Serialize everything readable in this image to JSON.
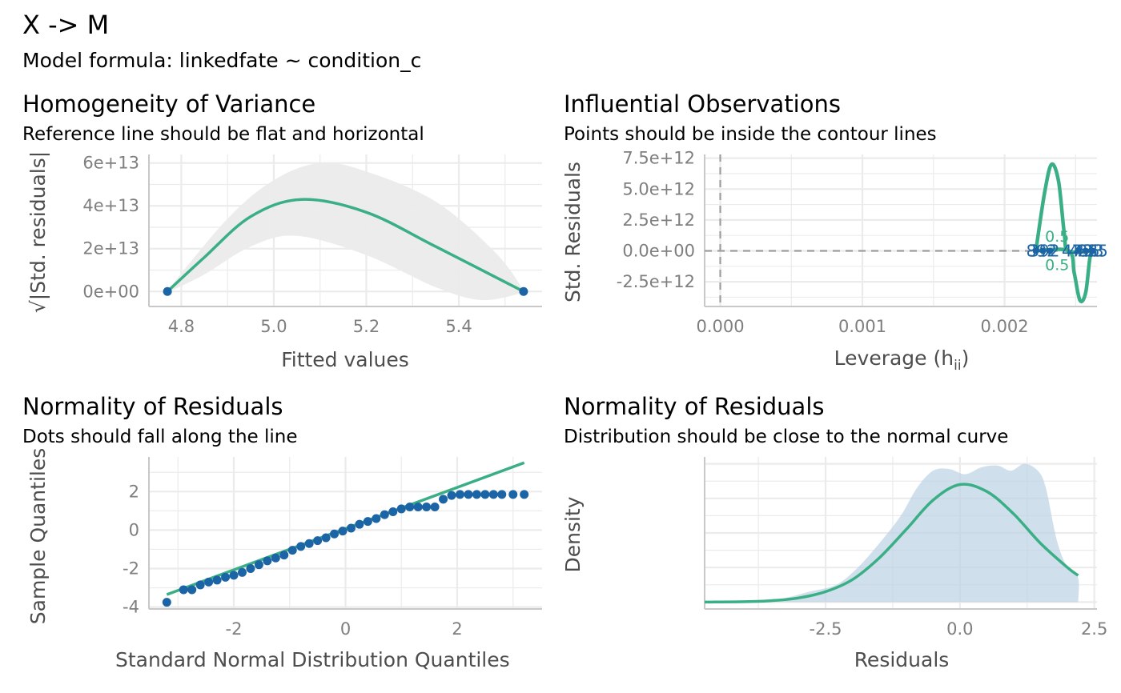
{
  "figure": {
    "title": "X -> M",
    "subtitle": "Model formula: linkedfate ~ condition_c"
  },
  "colors": {
    "fit_line": "#3aaf85",
    "points": "#1b64a5",
    "ribbon": "#ebebeb",
    "density_fill": "#bcd1e4",
    "grid": "#ebebeb",
    "reference": "#9e9e9e"
  },
  "chart_data": [
    {
      "id": "homogeneity",
      "type": "scatter",
      "title": "Homogeneity of Variance",
      "subtitle": "Reference line should be flat and horizontal",
      "xlabel": "Fitted values",
      "ylabel": "√|Std. residuals|",
      "xlim": [
        4.73,
        5.58
      ],
      "ylim": [
        -7000000000000.0,
        64000000000000.0
      ],
      "xticks": [
        4.8,
        5.0,
        5.2,
        5.4
      ],
      "xtick_labels": [
        "4.8",
        "5.0",
        "5.2",
        "5.4"
      ],
      "yticks": [
        0,
        20000000000000.0,
        40000000000000.0,
        60000000000000.0
      ],
      "ytick_labels": [
        "0e+00",
        "2e+13",
        "4e+13",
        "6e+13"
      ],
      "points": [
        [
          4.77,
          0
        ],
        [
          5.54,
          0
        ]
      ],
      "smooth": [
        [
          4.77,
          0
        ],
        [
          4.85,
          16000000000000.0
        ],
        [
          4.95,
          35000000000000.0
        ],
        [
          5.06,
          43000000000000.0
        ],
        [
          5.2,
          37000000000000.0
        ],
        [
          5.35,
          21000000000000.0
        ],
        [
          5.54,
          0
        ]
      ],
      "ribbon_upper": [
        [
          4.77,
          500000000000.0
        ],
        [
          4.9,
          34000000000000.0
        ],
        [
          5.0,
          52000000000000.0
        ],
        [
          5.1,
          60000000000000.0
        ],
        [
          5.2,
          56000000000000.0
        ],
        [
          5.35,
          42000000000000.0
        ],
        [
          5.48,
          18000000000000.0
        ],
        [
          5.54,
          500000000000.0
        ]
      ],
      "ribbon_lower": [
        [
          4.77,
          -500000000000.0
        ],
        [
          4.85,
          8000000000000.0
        ],
        [
          4.95,
          21000000000000.0
        ],
        [
          5.05,
          26000000000000.0
        ],
        [
          5.2,
          17000000000000.0
        ],
        [
          5.35,
          2000000000000.0
        ],
        [
          5.45,
          -4000000000000.0
        ],
        [
          5.54,
          -500000000000.0
        ]
      ]
    },
    {
      "id": "influential",
      "type": "scatter",
      "title": "Influential Observations",
      "subtitle": "Points should be inside the contour lines",
      "xlabel": "Leverage (h",
      "xlabel_sub": "ii",
      "xlabel_end": ")",
      "ylabel": "Std. Residuals",
      "xlim": [
        -0.00011,
        0.00265
      ],
      "ylim": [
        -4500000000000.0,
        7800000000000.0
      ],
      "xticks": [
        0,
        0.001,
        0.002
      ],
      "xtick_labels": [
        "0.000",
        "0.001",
        "0.002"
      ],
      "yticks": [
        -2500000000000.0,
        0,
        2500000000000.0,
        5000000000000.0,
        7500000000000.0
      ],
      "ytick_labels": [
        "-2.5e+12",
        "0.0e+00",
        "2.5e+12",
        "5.0e+12",
        "7.5e+12"
      ],
      "points": [
        [
          0.00222,
          0
        ],
        [
          0.00227,
          0
        ],
        [
          0.00232,
          0
        ],
        [
          0.00252,
          0
        ],
        [
          0.00257,
          0
        ],
        [
          0.00262,
          0
        ]
      ],
      "point_labels": [
        {
          "x": 0.00226,
          "y": 0,
          "text": "892",
          "anchor": "middle"
        },
        {
          "x": 0.00228,
          "y": 0,
          "text": "392",
          "anchor": "middle"
        },
        {
          "x": 0.00251,
          "y": 0,
          "text": "473",
          "anchor": "middle"
        },
        {
          "x": 0.00256,
          "y": 0,
          "text": "456",
          "anchor": "middle"
        },
        {
          "x": 0.00259,
          "y": 0,
          "text": "423",
          "anchor": "middle"
        },
        {
          "x": 0.00262,
          "y": 0,
          "text": "235",
          "anchor": "middle"
        }
      ],
      "contour_upper": [
        [
          0.00222,
          0
        ],
        [
          0.00228,
          4600000000000.0
        ],
        [
          0.00233,
          7000000000000.0
        ],
        [
          0.00238,
          5600000000000.0
        ],
        [
          0.00242,
          1400000000000.0
        ],
        [
          0.00245,
          0
        ],
        [
          0.00262,
          0
        ]
      ],
      "contour_lower": [
        [
          0.00222,
          0
        ],
        [
          0.00245,
          0
        ],
        [
          0.00249,
          -1800000000000.0
        ],
        [
          0.00253,
          -4000000000000.0
        ],
        [
          0.00257,
          -3400000000000.0
        ],
        [
          0.0026,
          -600000000000.0
        ],
        [
          0.00262,
          0
        ]
      ],
      "contour_labels": [
        {
          "x": 0.00237,
          "y": 1200000000000.0,
          "text": "0.5"
        },
        {
          "x": 0.00237,
          "y": -1100000000000.0,
          "text": "0.5"
        }
      ],
      "hline": 0,
      "vline": 0
    },
    {
      "id": "qq",
      "type": "scatter",
      "title": "Normality of Residuals",
      "subtitle": "Dots should fall along the line",
      "xlabel": "Standard Normal Distribution Quantiles",
      "ylabel": "Sample Quantiles",
      "xlim": [
        -3.52,
        3.52
      ],
      "ylim": [
        -4.1,
        3.8
      ],
      "xticks": [
        -2,
        0,
        2
      ],
      "xtick_labels": [
        "-2",
        "0",
        "2"
      ],
      "yticks": [
        -4,
        -2,
        0,
        2
      ],
      "ytick_labels": [
        "-4",
        "-2",
        "0",
        "2"
      ],
      "reference_line": [
        [
          -3.2,
          -3.35
        ],
        [
          3.2,
          3.5
        ]
      ],
      "points": [
        [
          -3.2,
          -3.75
        ],
        [
          -2.9,
          -3.1
        ],
        [
          -2.75,
          -3.1
        ],
        [
          -2.6,
          -2.85
        ],
        [
          -2.45,
          -2.7
        ],
        [
          -2.3,
          -2.6
        ],
        [
          -2.15,
          -2.45
        ],
        [
          -2.0,
          -2.35
        ],
        [
          -1.85,
          -2.2
        ],
        [
          -1.7,
          -2.0
        ],
        [
          -1.55,
          -1.8
        ],
        [
          -1.4,
          -1.6
        ],
        [
          -1.25,
          -1.45
        ],
        [
          -1.1,
          -1.3
        ],
        [
          -0.95,
          -1.05
        ],
        [
          -0.8,
          -0.85
        ],
        [
          -0.65,
          -0.7
        ],
        [
          -0.5,
          -0.55
        ],
        [
          -0.35,
          -0.4
        ],
        [
          -0.2,
          -0.2
        ],
        [
          -0.05,
          -0.05
        ],
        [
          0.1,
          0.1
        ],
        [
          0.25,
          0.3
        ],
        [
          0.4,
          0.45
        ],
        [
          0.55,
          0.6
        ],
        [
          0.7,
          0.8
        ],
        [
          0.85,
          0.95
        ],
        [
          1.0,
          1.1
        ],
        [
          1.15,
          1.2
        ],
        [
          1.3,
          1.2
        ],
        [
          1.45,
          1.2
        ],
        [
          1.6,
          1.2
        ],
        [
          1.75,
          1.6
        ],
        [
          1.9,
          1.8
        ],
        [
          2.05,
          1.85
        ],
        [
          2.2,
          1.85
        ],
        [
          2.35,
          1.85
        ],
        [
          2.5,
          1.85
        ],
        [
          2.65,
          1.85
        ],
        [
          2.8,
          1.85
        ],
        [
          3.0,
          1.85
        ],
        [
          3.2,
          1.85
        ]
      ]
    },
    {
      "id": "density",
      "type": "area",
      "title": "Normality of Residuals",
      "subtitle": "Distribution should be close to the normal curve",
      "xlabel": "Residuals",
      "ylabel": "Density",
      "xlim": [
        -4.75,
        2.55
      ],
      "ylim": [
        -0.02,
        0.42
      ],
      "xticks": [
        -2.5,
        0,
        2.5
      ],
      "xtick_labels": [
        "-2.5",
        "0.0",
        "2.5"
      ],
      "ygrid": [
        0,
        0.1,
        0.2,
        0.3,
        0.4
      ],
      "empirical_density": [
        [
          -3.8,
          0
        ],
        [
          -3.3,
          0.01
        ],
        [
          -2.8,
          0.03
        ],
        [
          -2.3,
          0.05
        ],
        [
          -1.9,
          0.1
        ],
        [
          -1.5,
          0.17
        ],
        [
          -1.1,
          0.25
        ],
        [
          -0.8,
          0.33
        ],
        [
          -0.5,
          0.38
        ],
        [
          -0.2,
          0.385
        ],
        [
          0.1,
          0.37
        ],
        [
          0.4,
          0.39
        ],
        [
          0.7,
          0.395
        ],
        [
          0.95,
          0.38
        ],
        [
          1.2,
          0.4
        ],
        [
          1.45,
          0.38
        ],
        [
          1.6,
          0.33
        ],
        [
          1.8,
          0.18
        ],
        [
          2.0,
          0.1
        ],
        [
          2.2,
          0.07
        ],
        [
          2.2,
          0
        ]
      ],
      "normal_curve": [
        [
          -4.75,
          0.0
        ],
        [
          -4.0,
          0.001
        ],
        [
          -3.5,
          0.004
        ],
        [
          -3.0,
          0.012
        ],
        [
          -2.5,
          0.03
        ],
        [
          -2.0,
          0.065
        ],
        [
          -1.5,
          0.128
        ],
        [
          -1.0,
          0.21
        ],
        [
          -0.5,
          0.295
        ],
        [
          0.0,
          0.34
        ],
        [
          0.5,
          0.32
        ],
        [
          1.0,
          0.255
        ],
        [
          1.5,
          0.17
        ],
        [
          2.0,
          0.1
        ],
        [
          2.2,
          0.077
        ]
      ]
    }
  ]
}
